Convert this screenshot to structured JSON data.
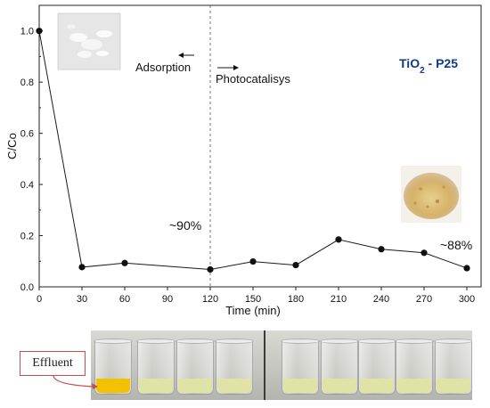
{
  "chart_data": {
    "type": "line",
    "x": [
      0,
      30,
      60,
      120,
      150,
      180,
      210,
      240,
      270,
      300
    ],
    "y": [
      1.0,
      0.077,
      0.093,
      0.068,
      0.099,
      0.085,
      0.185,
      0.147,
      0.133,
      0.073
    ],
    "xlabel": "Time (min)",
    "ylabel": "C/Co",
    "xticks": [
      0,
      30,
      60,
      90,
      120,
      150,
      180,
      210,
      240,
      270,
      300
    ],
    "yticks": [
      "0.0",
      "0.2",
      "0.4",
      "0.6",
      "0.8",
      "1.0"
    ],
    "xlim": [
      0,
      310
    ],
    "ylim": [
      0,
      1.1
    ],
    "grid": false,
    "divider_x": 120,
    "annotations": {
      "adsorption": "Adsorption",
      "photocatalysis": "Photocatalisys",
      "removal_1": "~90%",
      "removal_2": "~88%",
      "catalyst_main": "TiO",
      "catalyst_sub": "2",
      "catalyst_suffix": " - P25"
    },
    "colors": {
      "line": "#1a1a1a",
      "marker": "#111111",
      "catalyst_label": "#123a8c"
    }
  },
  "photo": {
    "effluent_label": "Effluent",
    "effluent_color": "#f2c200",
    "treated_color": "#dfe3a6",
    "arrow_color": "#c0504d"
  }
}
